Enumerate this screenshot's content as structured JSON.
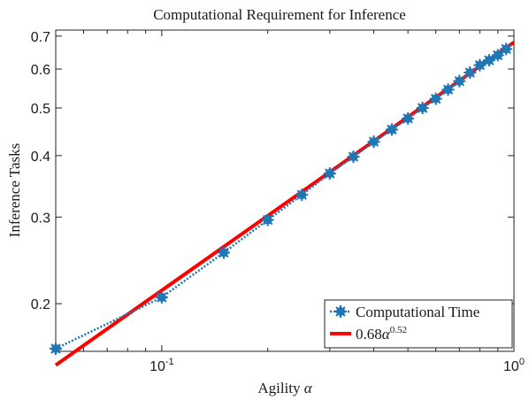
{
  "chart_data": {
    "type": "line",
    "title": "Computational Requirement for Inference",
    "xlabel": "Agility",
    "xlabel_symbol": "α",
    "ylabel": "Inference Tasks",
    "x_scale": "log",
    "y_scale": "log",
    "xlim": [
      0.05,
      1.0
    ],
    "ylim": [
      0.16,
      0.72
    ],
    "x_ticks": [
      {
        "label_base": "10",
        "label_exp": "-1"
      },
      {
        "label_base": "10",
        "label_exp": "0"
      }
    ],
    "y_ticks": [
      "0.2",
      "0.3",
      "0.4",
      "0.5",
      "0.6",
      "0.7"
    ],
    "grid": false,
    "legend_position": "bottom-right",
    "series": [
      {
        "name": "Computational Time",
        "style": "dotted line with filled markers",
        "color": "#1f77b4",
        "x": [
          0.05,
          0.1,
          0.15,
          0.2,
          0.25,
          0.3,
          0.35,
          0.4,
          0.45,
          0.5,
          0.55,
          0.6,
          0.65,
          0.7,
          0.75,
          0.8,
          0.85,
          0.9,
          0.95
        ],
        "y": [
          0.162,
          0.206,
          0.254,
          0.296,
          0.333,
          0.368,
          0.398,
          0.427,
          0.452,
          0.476,
          0.5,
          0.522,
          0.545,
          0.567,
          0.59,
          0.611,
          0.625,
          0.64,
          0.659
        ]
      },
      {
        "name_base": "0.68",
        "name_symbol": "α",
        "name_exp": "0.52",
        "style": "solid line",
        "color": "#ff0000",
        "x": [
          0.05,
          1.0
        ],
        "y": [
          0.15,
          0.68
        ]
      }
    ]
  }
}
